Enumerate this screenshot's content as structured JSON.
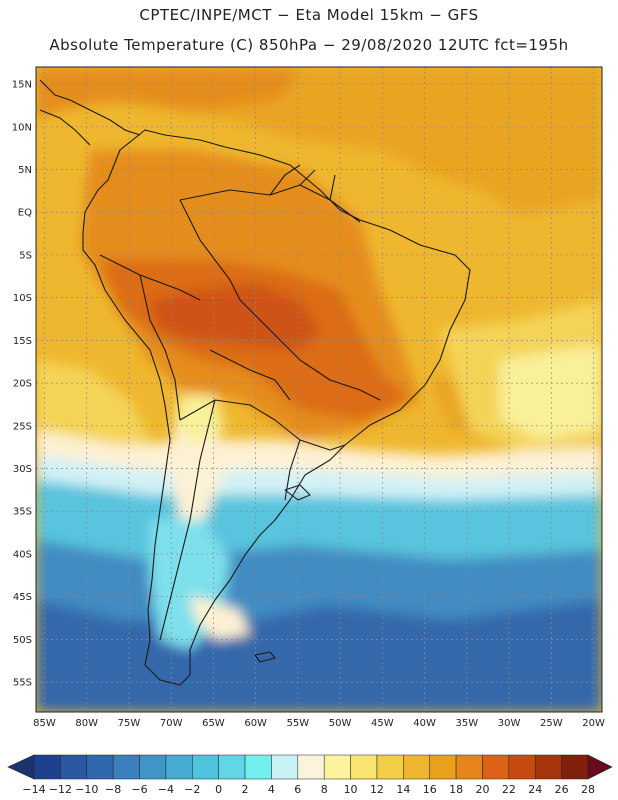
{
  "title": {
    "line1": "CPTEC/INPE/MCT −  Eta Model 15km − GFS",
    "line2": "Absolute Temperature (C) 850hPa − 29/08/2020 12UTC fct=195h"
  },
  "map": {
    "lat_labels": [
      "15N",
      "10N",
      "5N",
      "EQ",
      "5S",
      "10S",
      "15S",
      "20S",
      "25S",
      "30S",
      "35S",
      "40S",
      "45S",
      "50S",
      "55S"
    ],
    "lon_labels": [
      "85W",
      "80W",
      "75W",
      "70W",
      "65W",
      "60W",
      "55W",
      "50W",
      "45W",
      "40W",
      "35W",
      "30W",
      "25W",
      "20W"
    ],
    "lat_values": [
      15,
      10,
      5,
      0,
      -5,
      -10,
      -15,
      -20,
      -25,
      -30,
      -35,
      -40,
      -45,
      -50,
      -55
    ],
    "lon_values": [
      -85,
      -80,
      -75,
      -70,
      -65,
      -60,
      -55,
      -50,
      -45,
      -40,
      -35,
      -30,
      -25,
      -20
    ],
    "extent": {
      "lon_min": -86,
      "lon_max": -19,
      "lat_min": -58.5,
      "lat_max": 17
    }
  },
  "colorbar": {
    "labels": [
      "−14",
      "−12",
      "−10",
      "−8",
      "−6",
      "−4",
      "−2",
      "0",
      "2",
      "4",
      "6",
      "8",
      "10",
      "12",
      "14",
      "16",
      "18",
      "20",
      "22",
      "24",
      "26",
      "28"
    ],
    "bins": [
      "#1f3f8f",
      "#2a58a2",
      "#3068ae",
      "#3b80bc",
      "#3f95c6",
      "#46abd2",
      "#50c3dd",
      "#60d6e6",
      "#72efef",
      "#c9f2f6",
      "#fbf4dc",
      "#fbf39d",
      "#f9e471",
      "#f2cd47",
      "#eeb52e",
      "#e9a01d",
      "#e5851c",
      "#dc6215",
      "#c74a10",
      "#a6340c",
      "#80200d"
    ],
    "under_color": "#1c3371",
    "over_color": "#680b1c",
    "units": "C"
  },
  "field_colors": {
    "very_cold": "#3468ab",
    "cold": "#3f8cc3",
    "cool": "#59c4dd",
    "light_cyan": "#7ee0ec",
    "pale": "#d2f1f6",
    "cream": "#fdf1d3",
    "pale_yellow": "#f9f09a",
    "yellow": "#f4d456",
    "gold": "#efb72f",
    "orange_light": "#e9a522",
    "orange": "#e58d1e",
    "orange_dark": "#dc6c18",
    "red_orange": "#cd5314",
    "border_line": "#1a1a1a"
  }
}
